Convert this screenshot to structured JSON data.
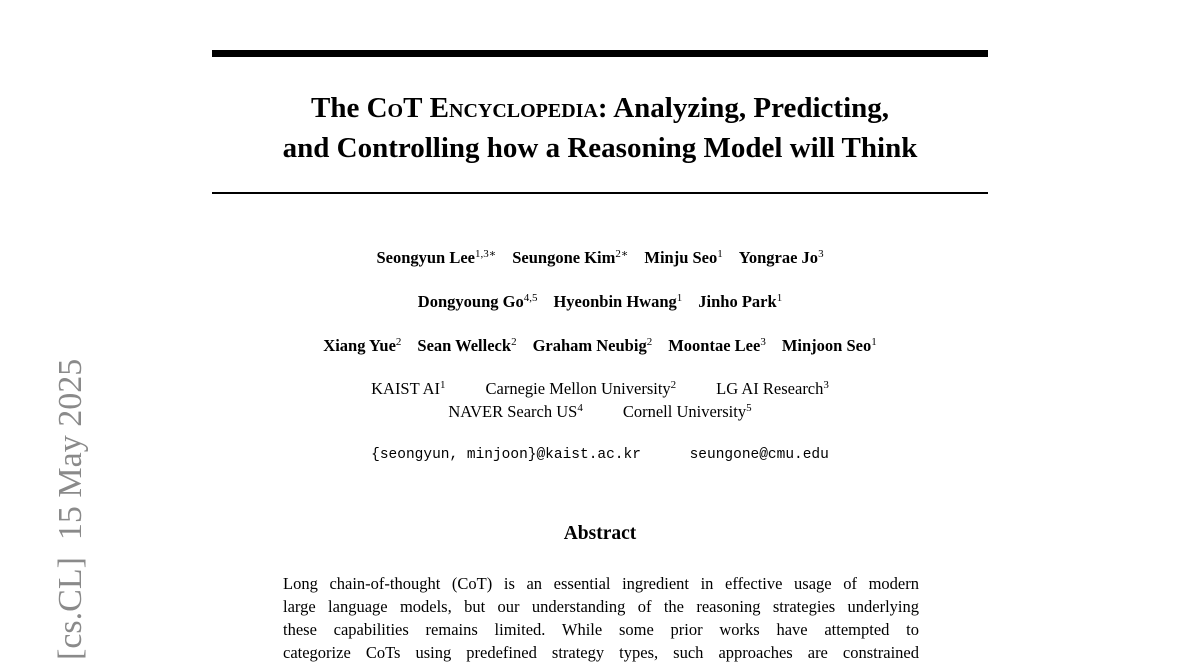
{
  "side_stamp": "[cs.CL]  15 May 2025",
  "title": {
    "line1_pre": "The ",
    "line1_sc1": "CoT",
    "line1_mid": " ",
    "line1_sc2": "Encyclopedia",
    "line1_post": ": Analyzing, Predicting,",
    "line2": "and Controlling how a Reasoning Model will Think"
  },
  "authors": [
    [
      {
        "name": "Seongyun Lee",
        "sup": "1,3∗"
      },
      {
        "name": "Seungone Kim",
        "sup": "2∗"
      },
      {
        "name": "Minju Seo",
        "sup": "1"
      },
      {
        "name": "Yongrae Jo",
        "sup": "3"
      }
    ],
    [
      {
        "name": "Dongyoung Go",
        "sup": "4,5"
      },
      {
        "name": "Hyeonbin Hwang",
        "sup": "1"
      },
      {
        "name": "Jinho Park",
        "sup": "1"
      }
    ],
    [
      {
        "name": "Xiang Yue",
        "sup": "2"
      },
      {
        "name": "Sean Welleck",
        "sup": "2"
      },
      {
        "name": "Graham Neubig",
        "sup": "2"
      },
      {
        "name": "Moontae Lee",
        "sup": "3"
      },
      {
        "name": "Minjoon Seo",
        "sup": "1"
      }
    ]
  ],
  "affiliations": [
    [
      {
        "name": "KAIST AI",
        "sup": "1"
      },
      {
        "name": "Carnegie Mellon University",
        "sup": "2"
      },
      {
        "name": "LG AI Research",
        "sup": "3"
      }
    ],
    [
      {
        "name": "NAVER Search US",
        "sup": "4"
      },
      {
        "name": "Cornell University",
        "sup": "5"
      }
    ]
  ],
  "emails": [
    "{seongyun, minjoon}@kaist.ac.kr",
    "seungone@cmu.edu"
  ],
  "abstract": {
    "heading": "Abstract",
    "lines": [
      "Long chain-of-thought (CoT) is an essential ingredient in effective usage of modern",
      "large language models, but our understanding of the reasoning strategies underlying",
      "these capabilities remains limited.  While some prior works have attempted to",
      "categorize CoTs using predefined strategy types, such approaches are constrained"
    ]
  }
}
